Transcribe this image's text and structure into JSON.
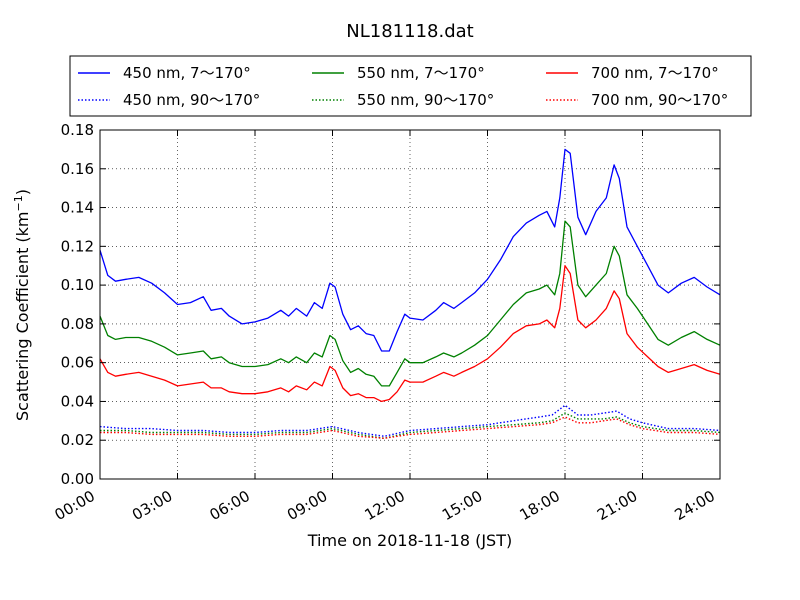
{
  "chart_data": {
    "type": "line",
    "title": "NL181118.dat",
    "xlabel": "Time on 2018-11-18 (JST)",
    "ylabel_main": "Scattering Coefficient (km",
    "ylabel_sup": "−1",
    "ylabel_close": ")",
    "xlim": [
      0,
      24
    ],
    "ylim": [
      0,
      0.18
    ],
    "x_ticks": [
      0,
      3,
      6,
      9,
      12,
      15,
      18,
      21,
      24
    ],
    "x_tick_labels": [
      "00:00",
      "03:00",
      "06:00",
      "09:00",
      "12:00",
      "15:00",
      "18:00",
      "21:00",
      "24:00"
    ],
    "y_ticks": [
      0,
      0.02,
      0.04,
      0.06,
      0.08,
      0.1,
      0.12,
      0.14,
      0.16,
      0.18
    ],
    "y_tick_labels": [
      "0.00",
      "0.02",
      "0.04",
      "0.06",
      "0.08",
      "0.10",
      "0.12",
      "0.14",
      "0.16",
      "0.18"
    ],
    "grid": true,
    "legend_position": "top, above plot",
    "series": [
      {
        "name": "450 nm, 7～170°",
        "color": "#0000ff",
        "style": "solid",
        "x": [
          0,
          0.3,
          0.6,
          1,
          1.5,
          2,
          2.5,
          3,
          3.5,
          4,
          4.3,
          4.7,
          5,
          5.5,
          6,
          6.5,
          7,
          7.3,
          7.6,
          8,
          8.3,
          8.6,
          8.9,
          9.1,
          9.4,
          9.7,
          10,
          10.3,
          10.6,
          10.9,
          11.2,
          11.5,
          11.8,
          12,
          12.5,
          13,
          13.3,
          13.7,
          14,
          14.5,
          15,
          15.5,
          16,
          16.5,
          17,
          17.3,
          17.6,
          17.8,
          18,
          18.2,
          18.5,
          18.8,
          19.2,
          19.6,
          19.9,
          20.1,
          20.4,
          20.8,
          21.2,
          21.6,
          22,
          22.5,
          23,
          23.5,
          24
        ],
        "values": [
          0.118,
          0.105,
          0.102,
          0.103,
          0.104,
          0.101,
          0.096,
          0.09,
          0.091,
          0.094,
          0.087,
          0.088,
          0.084,
          0.08,
          0.081,
          0.083,
          0.087,
          0.084,
          0.088,
          0.084,
          0.091,
          0.088,
          0.101,
          0.099,
          0.085,
          0.077,
          0.079,
          0.075,
          0.074,
          0.066,
          0.066,
          0.076,
          0.085,
          0.083,
          0.082,
          0.087,
          0.091,
          0.088,
          0.091,
          0.096,
          0.103,
          0.113,
          0.125,
          0.132,
          0.136,
          0.138,
          0.13,
          0.145,
          0.17,
          0.168,
          0.135,
          0.126,
          0.138,
          0.145,
          0.162,
          0.155,
          0.13,
          0.12,
          0.11,
          0.1,
          0.096,
          0.101,
          0.104,
          0.099,
          0.095
        ]
      },
      {
        "name": "550 nm, 7～170°",
        "color": "#008000",
        "style": "solid",
        "x": [
          0,
          0.3,
          0.6,
          1,
          1.5,
          2,
          2.5,
          3,
          3.5,
          4,
          4.3,
          4.7,
          5,
          5.5,
          6,
          6.5,
          7,
          7.3,
          7.6,
          8,
          8.3,
          8.6,
          8.9,
          9.1,
          9.4,
          9.7,
          10,
          10.3,
          10.6,
          10.9,
          11.2,
          11.5,
          11.8,
          12,
          12.5,
          13,
          13.3,
          13.7,
          14,
          14.5,
          15,
          15.5,
          16,
          16.5,
          17,
          17.3,
          17.6,
          17.8,
          18,
          18.2,
          18.5,
          18.8,
          19.2,
          19.6,
          19.9,
          20.1,
          20.4,
          20.8,
          21.2,
          21.6,
          22,
          22.5,
          23,
          23.5,
          24
        ],
        "values": [
          0.084,
          0.074,
          0.072,
          0.073,
          0.073,
          0.071,
          0.068,
          0.064,
          0.065,
          0.066,
          0.062,
          0.063,
          0.06,
          0.058,
          0.058,
          0.059,
          0.062,
          0.06,
          0.063,
          0.06,
          0.065,
          0.063,
          0.074,
          0.072,
          0.061,
          0.055,
          0.057,
          0.054,
          0.053,
          0.048,
          0.048,
          0.055,
          0.062,
          0.06,
          0.06,
          0.063,
          0.065,
          0.063,
          0.065,
          0.069,
          0.074,
          0.082,
          0.09,
          0.096,
          0.098,
          0.1,
          0.095,
          0.106,
          0.133,
          0.13,
          0.1,
          0.094,
          0.1,
          0.106,
          0.12,
          0.115,
          0.095,
          0.088,
          0.08,
          0.072,
          0.069,
          0.073,
          0.076,
          0.072,
          0.069
        ]
      },
      {
        "name": "700 nm, 7～170°",
        "color": "#ff0000",
        "style": "solid",
        "x": [
          0,
          0.3,
          0.6,
          1,
          1.5,
          2,
          2.5,
          3,
          3.5,
          4,
          4.3,
          4.7,
          5,
          5.5,
          6,
          6.5,
          7,
          7.3,
          7.6,
          8,
          8.3,
          8.6,
          8.9,
          9.1,
          9.4,
          9.7,
          10,
          10.3,
          10.6,
          10.9,
          11.2,
          11.5,
          11.8,
          12,
          12.5,
          13,
          13.3,
          13.7,
          14,
          14.5,
          15,
          15.5,
          16,
          16.5,
          17,
          17.3,
          17.6,
          17.8,
          18,
          18.2,
          18.5,
          18.8,
          19.2,
          19.6,
          19.9,
          20.1,
          20.4,
          20.8,
          21.2,
          21.6,
          22,
          22.5,
          23,
          23.5,
          24
        ],
        "values": [
          0.062,
          0.055,
          0.053,
          0.054,
          0.055,
          0.053,
          0.051,
          0.048,
          0.049,
          0.05,
          0.047,
          0.047,
          0.045,
          0.044,
          0.044,
          0.045,
          0.047,
          0.045,
          0.048,
          0.046,
          0.05,
          0.048,
          0.058,
          0.056,
          0.047,
          0.043,
          0.044,
          0.042,
          0.042,
          0.04,
          0.041,
          0.045,
          0.051,
          0.05,
          0.05,
          0.053,
          0.055,
          0.053,
          0.055,
          0.058,
          0.062,
          0.068,
          0.075,
          0.079,
          0.08,
          0.082,
          0.078,
          0.088,
          0.11,
          0.106,
          0.082,
          0.078,
          0.082,
          0.088,
          0.097,
          0.093,
          0.075,
          0.068,
          0.063,
          0.058,
          0.055,
          0.057,
          0.059,
          0.056,
          0.054
        ]
      },
      {
        "name": "450 nm, 90～170°",
        "color": "#0000ff",
        "style": "dotted",
        "x": [
          0,
          1,
          2,
          3,
          4,
          5,
          6,
          7,
          8,
          9,
          10,
          11,
          12,
          13,
          14,
          15,
          16,
          17,
          17.5,
          18,
          18.5,
          19,
          19.5,
          20,
          20.5,
          21,
          22,
          23,
          24
        ],
        "values": [
          0.027,
          0.026,
          0.026,
          0.025,
          0.025,
          0.024,
          0.024,
          0.025,
          0.025,
          0.027,
          0.024,
          0.022,
          0.025,
          0.026,
          0.027,
          0.028,
          0.03,
          0.032,
          0.033,
          0.038,
          0.033,
          0.033,
          0.034,
          0.035,
          0.031,
          0.029,
          0.026,
          0.026,
          0.025
        ]
      },
      {
        "name": "550 nm, 90～170°",
        "color": "#008000",
        "style": "dotted",
        "x": [
          0,
          1,
          2,
          3,
          4,
          5,
          6,
          7,
          8,
          9,
          10,
          11,
          12,
          13,
          14,
          15,
          16,
          17,
          17.5,
          18,
          18.5,
          19,
          19.5,
          20,
          20.5,
          21,
          22,
          23,
          24
        ],
        "values": [
          0.025,
          0.025,
          0.024,
          0.024,
          0.024,
          0.023,
          0.023,
          0.024,
          0.024,
          0.026,
          0.023,
          0.021,
          0.024,
          0.025,
          0.026,
          0.027,
          0.028,
          0.029,
          0.03,
          0.034,
          0.031,
          0.031,
          0.031,
          0.032,
          0.029,
          0.027,
          0.025,
          0.025,
          0.024
        ]
      },
      {
        "name": "700 nm, 90～170°",
        "color": "#ff0000",
        "style": "dotted",
        "x": [
          0,
          1,
          2,
          3,
          4,
          5,
          6,
          7,
          8,
          9,
          10,
          11,
          12,
          13,
          14,
          15,
          16,
          17,
          17.5,
          18,
          18.5,
          19,
          19.5,
          20,
          20.5,
          21,
          22,
          23,
          24
        ],
        "values": [
          0.024,
          0.024,
          0.023,
          0.023,
          0.023,
          0.022,
          0.022,
          0.023,
          0.023,
          0.025,
          0.022,
          0.021,
          0.023,
          0.024,
          0.025,
          0.026,
          0.027,
          0.028,
          0.029,
          0.032,
          0.029,
          0.029,
          0.03,
          0.031,
          0.028,
          0.026,
          0.024,
          0.024,
          0.023
        ]
      }
    ]
  }
}
